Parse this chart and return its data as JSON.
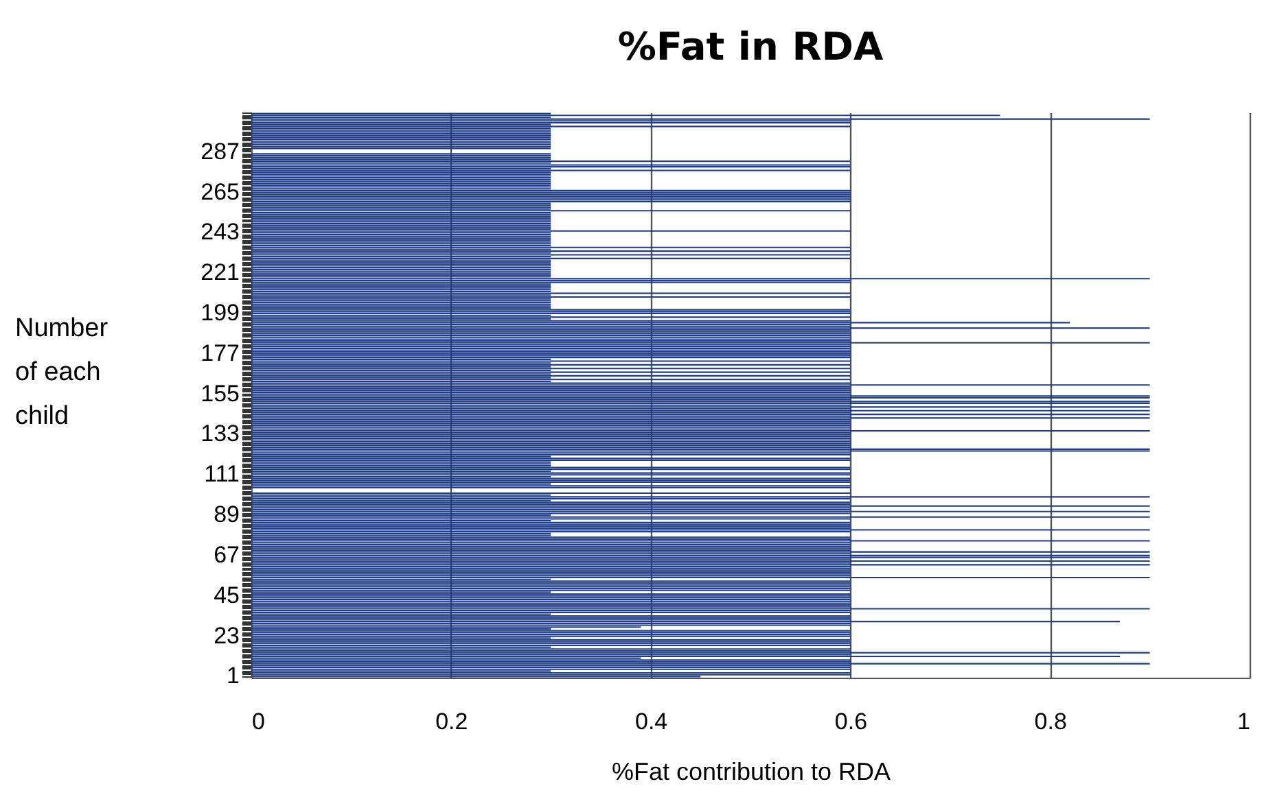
{
  "chart_data": {
    "type": "bar",
    "orientation": "horizontal",
    "title": "%Fat in RDA",
    "xlabel": "%Fat contribution to RDA",
    "ylabel": "Number of each child",
    "color": "#1f3c88",
    "xlim": [
      0,
      1
    ],
    "xticks": [
      0,
      0.2,
      0.4,
      0.6,
      0.8,
      1
    ],
    "grid": "x",
    "categories": [
      null,
      null,
      null,
      null,
      null,
      null,
      null,
      null,
      null,
      null,
      null,
      null,
      null,
      null,
      null,
      null,
      null,
      null,
      null,
      null,
      null,
      "287",
      null,
      null,
      null,
      null,
      null,
      null,
      null,
      null,
      null,
      null,
      null,
      null,
      null,
      null,
      null,
      null,
      null,
      null,
      null,
      null,
      null,
      "265",
      null,
      null,
      null,
      null,
      null,
      null,
      null,
      null,
      null,
      null,
      null,
      null,
      null,
      null,
      null,
      null,
      null,
      null,
      null,
      null,
      null,
      "243",
      null,
      null,
      null,
      null,
      null,
      null,
      null,
      null,
      null,
      null,
      null,
      null,
      null,
      null,
      null,
      null,
      null,
      null,
      null,
      null,
      null,
      "221",
      null,
      null,
      null,
      null,
      null,
      null,
      null,
      null,
      null,
      null,
      null,
      null,
      null,
      null,
      null,
      null,
      null,
      null,
      null,
      null,
      null,
      "199",
      null,
      null,
      null,
      null,
      null,
      null,
      null,
      null,
      null,
      null,
      null,
      null,
      null,
      null,
      null,
      null,
      null,
      null,
      null,
      null,
      null,
      "177",
      null,
      null,
      null,
      null,
      null,
      null,
      null,
      null,
      null,
      null,
      null,
      null,
      null,
      null,
      null,
      null,
      null,
      null,
      null,
      null,
      null,
      "155",
      null,
      null,
      null,
      null,
      null,
      null,
      null,
      null,
      null,
      null,
      null,
      null,
      null,
      null,
      null,
      null,
      null,
      null,
      null,
      null,
      null,
      "133",
      null,
      null,
      null,
      null,
      null,
      null,
      null,
      null,
      null,
      null,
      null,
      null,
      null,
      null,
      null,
      null,
      null,
      null,
      null,
      null,
      null,
      "111",
      null,
      null,
      null,
      null,
      null,
      null,
      null,
      null,
      null,
      null,
      null,
      null,
      null,
      null,
      null,
      null,
      null,
      null,
      null,
      null,
      null,
      "89",
      null,
      null,
      null,
      null,
      null,
      null,
      null,
      null,
      null,
      null,
      null,
      null,
      null,
      null,
      null,
      null,
      null,
      null,
      null,
      null,
      null,
      "67",
      null,
      null,
      null,
      null,
      null,
      null,
      null,
      null,
      null,
      null,
      null,
      null,
      null,
      null,
      null,
      null,
      null,
      null,
      null,
      null,
      null,
      "45",
      null,
      null,
      null,
      null,
      null,
      null,
      null,
      null,
      null,
      null,
      null,
      null,
      null,
      null,
      null,
      null,
      null,
      null,
      null,
      null,
      null,
      "23",
      null,
      null,
      null,
      null,
      null,
      null,
      null,
      null,
      null,
      null,
      null,
      null,
      null,
      null,
      null,
      null,
      null,
      null,
      null,
      null,
      null,
      "1"
    ],
    "values": [
      0.3,
      0.75,
      0.3,
      0.9,
      0.6,
      0.6,
      0.3,
      0.6,
      0.3,
      0.3,
      0.3,
      0.3,
      0.3,
      0.3,
      0.3,
      0.3,
      0.3,
      0.3,
      0.3,
      0.3,
      0,
      0,
      0.3,
      0.3,
      0.3,
      0.3,
      0.6,
      0.3,
      0.6,
      0.6,
      0.3,
      0.6,
      0.3,
      0.3,
      0.3,
      0.3,
      0.3,
      0.3,
      0.3,
      0.3,
      0.3,
      0.3,
      0.6,
      0.6,
      0.6,
      0.6,
      0.6,
      0.6,
      0.6,
      0.3,
      0.3,
      0.3,
      0.3,
      0.6,
      0.3,
      0.3,
      0.3,
      0.3,
      0.3,
      0.3,
      0.3,
      0.3,
      0.3,
      0.3,
      0.6,
      0.3,
      0.3,
      0.3,
      0.3,
      0.3,
      0.3,
      0.3,
      0.3,
      0.6,
      0.3,
      0.6,
      0.3,
      0.6,
      0.3,
      0.6,
      0.3,
      0.3,
      0.3,
      0.3,
      0.3,
      0.3,
      0.3,
      0.3,
      0.3,
      0.3,
      0.9,
      0.6,
      0.6,
      0.3,
      0.3,
      0.3,
      0.3,
      0.3,
      0.6,
      0.3,
      0.6,
      0.3,
      0.3,
      0.3,
      0.3,
      0.3,
      0.3,
      0.6,
      0.6,
      0.6,
      0.3,
      0.6,
      0.3,
      0.6,
      0.82,
      0.6,
      0.6,
      0.9,
      0.6,
      0.6,
      0.6,
      0.6,
      0.6,
      0.6,
      0.6,
      0.9,
      0.6,
      0.6,
      0.6,
      0.6,
      0.6,
      0.6,
      0.6,
      0.6,
      0.3,
      0.6,
      0.3,
      0.6,
      0.3,
      0.6,
      0.3,
      0.6,
      0.3,
      0.6,
      0.3,
      0.6,
      0.3,
      0.6,
      0.9,
      0.6,
      0.6,
      0.6,
      0.6,
      0.6,
      0.9,
      0.9,
      0.6,
      0.9,
      0.9,
      0.6,
      0.9,
      0.6,
      0.9,
      0.6,
      0.9,
      0.6,
      0.9,
      0.6,
      0.6,
      0.6,
      0.6,
      0.6,
      0.6,
      0.9,
      0.6,
      0.6,
      0.6,
      0.6,
      0.6,
      0.6,
      0.6,
      0.6,
      0.6,
      0.9,
      0.9,
      0.6,
      0.6,
      0.3,
      0.6,
      0.6,
      0.3,
      0.3,
      0.3,
      0.6,
      0.6,
      0.3,
      0.6,
      0.6,
      0.3,
      0.6,
      0.6,
      0.6,
      0.3,
      0.6,
      0.6,
      0,
      0,
      0.6,
      0.3,
      0.9,
      0.6,
      0.3,
      0.6,
      0.6,
      0.9,
      0.6,
      0.6,
      0.9,
      0.6,
      0.3,
      0.9,
      0.6,
      0.3,
      0.6,
      0.6,
      0.6,
      0.6,
      0.9,
      0.6,
      0.3,
      0.3,
      0.6,
      0.6,
      0.9,
      0.6,
      0.6,
      0.6,
      0.6,
      0.6,
      0.9,
      0.6,
      0.9,
      0.9,
      0.6,
      0.9,
      0.6,
      0.9,
      0.6,
      0.6,
      0.6,
      0.6,
      0.6,
      0.6,
      0.9,
      0.3,
      0.6,
      0.6,
      0.6,
      0.6,
      0.6,
      0.6,
      0.3,
      0.6,
      0.6,
      0.6,
      0.6,
      0.6,
      0.6,
      0.6,
      0.6,
      0.9,
      0.6,
      0.6,
      0.3,
      0.6,
      0.6,
      0.6,
      0.87,
      0.6,
      0.6,
      0.39,
      0.3,
      0.6,
      0.6,
      0.6,
      0.6,
      0.3,
      0.6,
      0.6,
      0.6,
      0.6,
      0.3,
      0.6,
      0.6,
      0.9,
      0.6,
      0.87,
      0.39,
      0.6,
      0.6,
      0.9,
      0.6,
      0.6,
      0.6,
      0.3,
      0.6,
      0.6,
      0.45
    ]
  }
}
